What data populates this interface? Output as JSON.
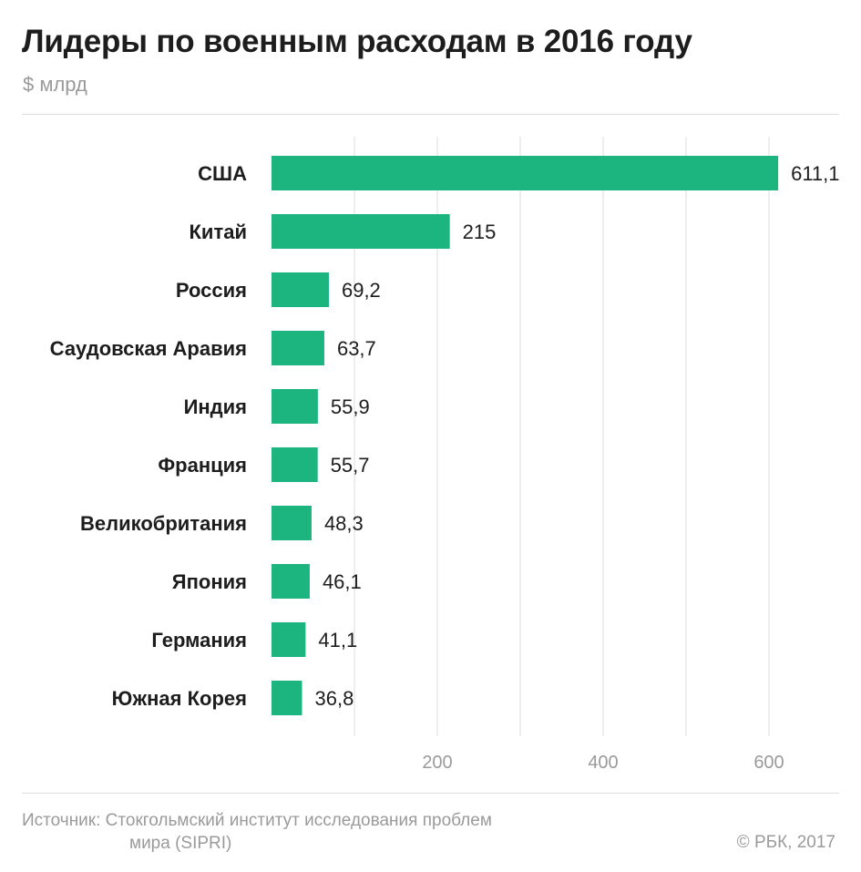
{
  "header": {
    "title": "Лидеры по военным расходам в 2016 году",
    "subtitle": "$ млрд"
  },
  "footer": {
    "source_line1": "Источник: Стокгольмский институт исследования проблем",
    "source_line2": "мира (SIPRI)",
    "copyright": "© РБК, 2017"
  },
  "colors": {
    "bar": "#1db57f",
    "grid": "#dcdcdc",
    "label": "#1d1d1d",
    "value": "#1d1d1d",
    "tick": "#9a9a9a"
  },
  "chart_data": {
    "type": "bar",
    "orientation": "horizontal",
    "title": "Лидеры по военным расходам в 2016 году",
    "unit": "$ млрд",
    "categories": [
      "США",
      "Китай",
      "Россия",
      "Саудовская Аравия",
      "Индия",
      "Франция",
      "Великобритания",
      "Япония",
      "Германия",
      "Южная Корея"
    ],
    "values": [
      611.1,
      215,
      69.2,
      63.7,
      55.9,
      55.7,
      48.3,
      46.1,
      41.1,
      36.8
    ],
    "value_labels": [
      "611,1",
      "215",
      "69,2",
      "63,7",
      "55,9",
      "55,7",
      "48,3",
      "46,1",
      "41,1",
      "36,8"
    ],
    "xlim": [
      0,
      685
    ],
    "gridlines": [
      100,
      200,
      300,
      400,
      500,
      600
    ],
    "ticks": [
      200,
      400,
      600
    ],
    "tick_labels": [
      "200",
      "400",
      "600"
    ]
  }
}
